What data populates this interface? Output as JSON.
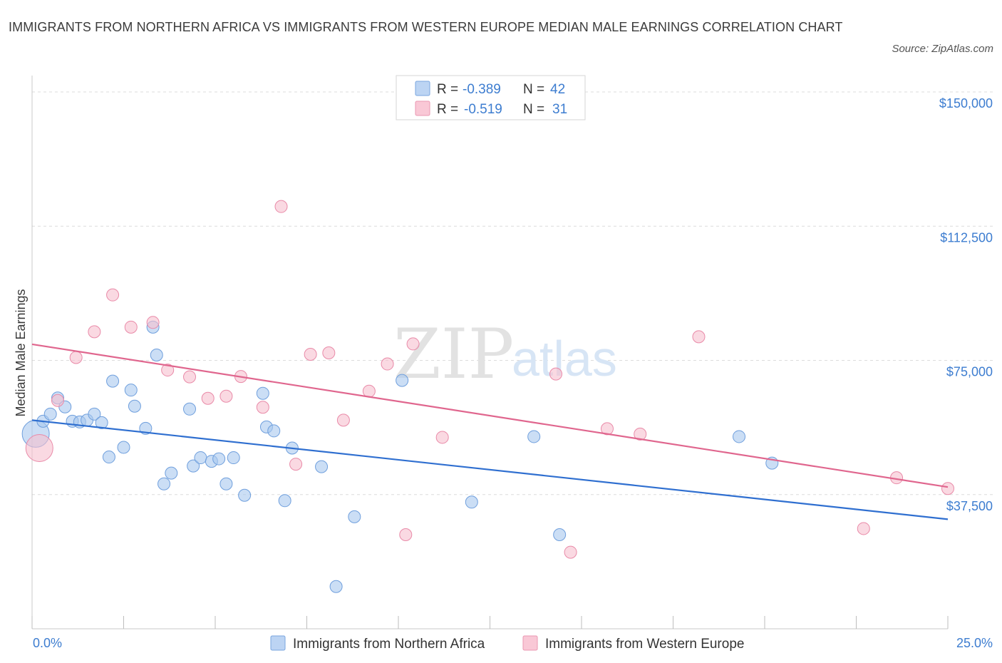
{
  "header": {
    "title": "IMMIGRANTS FROM NORTHERN AFRICA VS IMMIGRANTS FROM WESTERN EUROPE MEDIAN MALE EARNINGS CORRELATION CHART",
    "source": "Source: ZipAtlas.com"
  },
  "watermark": {
    "part1": "ZIP",
    "part2": "atlas"
  },
  "colors": {
    "blue_fill": "#a9c8ef",
    "blue_stroke": "#6f9fdd",
    "blue_line": "#2f6fd0",
    "pink_fill": "#f7bfcf",
    "pink_stroke": "#e98aa8",
    "pink_line": "#e0668e",
    "grid": "#dcdcdc",
    "axis_text": "#3d7dd0"
  },
  "legend": {
    "series1": {
      "r_label": "R =",
      "r_value": "-0.389",
      "n_label": "N =",
      "n_value": "42"
    },
    "series2": {
      "r_label": "R =",
      "r_value": "-0.519",
      "n_label": "N =",
      "n_value": "31"
    }
  },
  "chart_data": {
    "type": "scatter",
    "title": "IMMIGRANTS FROM NORTHERN AFRICA VS IMMIGRANTS FROM WESTERN EUROPE MEDIAN MALE EARNINGS CORRELATION CHART",
    "xlabel": "",
    "ylabel": "Median Male Earnings",
    "xlim": [
      0,
      25
    ],
    "ylim": [
      0,
      152000
    ],
    "x_tick_labels": [
      "0.0%",
      "25.0%"
    ],
    "y_ticks": [
      37500,
      75000,
      112500,
      150000
    ],
    "y_tick_labels": [
      "$37,500",
      "$75,000",
      "$112,500",
      "$150,000"
    ],
    "grid": true,
    "legend_position": "top-center",
    "series": [
      {
        "name": "Immigrants from Northern Africa",
        "color": "#a9c8ef",
        "r": -0.389,
        "n": 42,
        "trend": {
          "x": [
            0,
            25
          ],
          "y": [
            58300,
            30600
          ]
        },
        "points": [
          {
            "x": 0.1,
            "y": 54500,
            "size": "large"
          },
          {
            "x": 0.3,
            "y": 58000
          },
          {
            "x": 0.5,
            "y": 60000
          },
          {
            "x": 0.7,
            "y": 64500
          },
          {
            "x": 0.9,
            "y": 62000
          },
          {
            "x": 1.1,
            "y": 58000
          },
          {
            "x": 1.3,
            "y": 57800
          },
          {
            "x": 1.5,
            "y": 58300
          },
          {
            "x": 1.7,
            "y": 60000
          },
          {
            "x": 1.9,
            "y": 57600
          },
          {
            "x": 2.1,
            "y": 48000
          },
          {
            "x": 2.2,
            "y": 69200
          },
          {
            "x": 2.5,
            "y": 50700
          },
          {
            "x": 2.7,
            "y": 66700
          },
          {
            "x": 2.8,
            "y": 62200
          },
          {
            "x": 3.1,
            "y": 56000
          },
          {
            "x": 3.3,
            "y": 84300
          },
          {
            "x": 3.4,
            "y": 76500
          },
          {
            "x": 3.6,
            "y": 40500
          },
          {
            "x": 3.8,
            "y": 43500
          },
          {
            "x": 4.3,
            "y": 61400
          },
          {
            "x": 4.4,
            "y": 45500
          },
          {
            "x": 4.6,
            "y": 47800
          },
          {
            "x": 4.9,
            "y": 46800
          },
          {
            "x": 5.1,
            "y": 47500
          },
          {
            "x": 5.3,
            "y": 40500
          },
          {
            "x": 5.5,
            "y": 47800
          },
          {
            "x": 5.8,
            "y": 37300
          },
          {
            "x": 6.3,
            "y": 65800
          },
          {
            "x": 6.4,
            "y": 56400
          },
          {
            "x": 6.6,
            "y": 55300
          },
          {
            "x": 6.9,
            "y": 35800
          },
          {
            "x": 7.1,
            "y": 50500
          },
          {
            "x": 7.9,
            "y": 45300
          },
          {
            "x": 8.3,
            "y": 11800
          },
          {
            "x": 8.8,
            "y": 31300
          },
          {
            "x": 10.1,
            "y": 69400
          },
          {
            "x": 12.0,
            "y": 35400
          },
          {
            "x": 13.7,
            "y": 53700
          },
          {
            "x": 14.4,
            "y": 26300
          },
          {
            "x": 19.3,
            "y": 53700
          },
          {
            "x": 20.2,
            "y": 46300
          }
        ]
      },
      {
        "name": "Immigrants from Western Europe",
        "color": "#f7bfcf",
        "r": -0.519,
        "n": 31,
        "trend": {
          "x": [
            0,
            25
          ],
          "y": [
            79500,
            39600
          ]
        },
        "points": [
          {
            "x": 0.2,
            "y": 50500,
            "size": "large"
          },
          {
            "x": 0.7,
            "y": 63800
          },
          {
            "x": 1.2,
            "y": 75800
          },
          {
            "x": 1.7,
            "y": 83000
          },
          {
            "x": 2.2,
            "y": 93300
          },
          {
            "x": 2.7,
            "y": 84300
          },
          {
            "x": 3.3,
            "y": 85600
          },
          {
            "x": 3.7,
            "y": 72300
          },
          {
            "x": 4.3,
            "y": 70400
          },
          {
            "x": 4.8,
            "y": 64400
          },
          {
            "x": 5.3,
            "y": 65000
          },
          {
            "x": 5.7,
            "y": 70500
          },
          {
            "x": 6.3,
            "y": 61900
          },
          {
            "x": 6.8,
            "y": 118000
          },
          {
            "x": 7.2,
            "y": 46000
          },
          {
            "x": 7.6,
            "y": 76700
          },
          {
            "x": 8.1,
            "y": 77100
          },
          {
            "x": 8.5,
            "y": 58300
          },
          {
            "x": 9.2,
            "y": 66400
          },
          {
            "x": 9.7,
            "y": 74000
          },
          {
            "x": 10.2,
            "y": 26300
          },
          {
            "x": 10.4,
            "y": 79600
          },
          {
            "x": 11.2,
            "y": 53500
          },
          {
            "x": 14.3,
            "y": 71200
          },
          {
            "x": 14.7,
            "y": 21400
          },
          {
            "x": 15.7,
            "y": 55900
          },
          {
            "x": 16.6,
            "y": 54400
          },
          {
            "x": 18.2,
            "y": 81600
          },
          {
            "x": 22.7,
            "y": 28000
          },
          {
            "x": 23.6,
            "y": 42200
          },
          {
            "x": 25.0,
            "y": 39200
          }
        ]
      }
    ]
  }
}
